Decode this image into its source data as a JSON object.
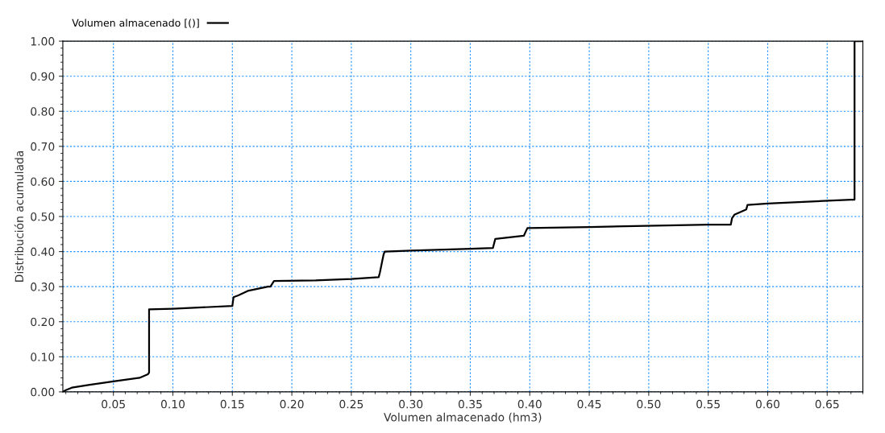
{
  "chart_data": {
    "type": "line",
    "xlabel": "Volumen almacenado (hm3)",
    "ylabel": "Distribución acumulada",
    "xlim": [
      0.0075,
      0.68
    ],
    "ylim": [
      0,
      1
    ],
    "xticks": [
      {
        "value": 0.05,
        "label": "0.05"
      },
      {
        "value": 0.1,
        "label": "0.10"
      },
      {
        "value": 0.15,
        "label": "0.15"
      },
      {
        "value": 0.2,
        "label": "0.20"
      },
      {
        "value": 0.25,
        "label": "0.25"
      },
      {
        "value": 0.3,
        "label": "0.30"
      },
      {
        "value": 0.35,
        "label": "0.35"
      },
      {
        "value": 0.4,
        "label": "0.40"
      },
      {
        "value": 0.45,
        "label": "0.45"
      },
      {
        "value": 0.5,
        "label": "0.50"
      },
      {
        "value": 0.55,
        "label": "0.55"
      },
      {
        "value": 0.6,
        "label": "0.60"
      },
      {
        "value": 0.65,
        "label": "0.65"
      }
    ],
    "yticks": [
      {
        "value": 0,
        "label": "0.00"
      },
      {
        "value": 0.1,
        "label": "0.10"
      },
      {
        "value": 0.2,
        "label": "0.20"
      },
      {
        "value": 0.3,
        "label": "0.30"
      },
      {
        "value": 0.4,
        "label": "0.40"
      },
      {
        "value": 0.5,
        "label": "0.50"
      },
      {
        "value": 0.6,
        "label": "0.60"
      },
      {
        "value": 0.7,
        "label": "0.70"
      },
      {
        "value": 0.8,
        "label": "0.80"
      },
      {
        "value": 0.9,
        "label": "0.90"
      },
      {
        "value": 1,
        "label": "1.00"
      }
    ],
    "grid": true,
    "legend": "top left",
    "marker": "none",
    "line_style": "solid",
    "series": [
      {
        "name": "Volumen almacenado [()]",
        "color": "#000000",
        "x": [
          0.0075,
          0.01,
          0.015,
          0.03,
          0.05,
          0.072,
          0.079,
          0.08,
          0.08,
          0.1,
          0.15,
          0.151,
          0.155,
          0.163,
          0.18,
          0.182,
          0.185,
          0.22,
          0.25,
          0.273,
          0.274,
          0.277,
          0.278,
          0.3,
          0.35,
          0.369,
          0.371,
          0.395,
          0.398,
          0.45,
          0.55,
          0.569,
          0.57,
          0.572,
          0.582,
          0.583,
          0.6,
          0.67,
          0.673,
          0.673,
          0.68
        ],
        "values": [
          0.0,
          0.005,
          0.012,
          0.02,
          0.03,
          0.04,
          0.05,
          0.055,
          0.235,
          0.237,
          0.245,
          0.27,
          0.275,
          0.288,
          0.3,
          0.3,
          0.316,
          0.318,
          0.322,
          0.327,
          0.34,
          0.39,
          0.4,
          0.403,
          0.408,
          0.41,
          0.436,
          0.445,
          0.467,
          0.47,
          0.477,
          0.477,
          0.495,
          0.505,
          0.52,
          0.533,
          0.537,
          0.548,
          0.548,
          1.0,
          1.0
        ]
      }
    ]
  }
}
